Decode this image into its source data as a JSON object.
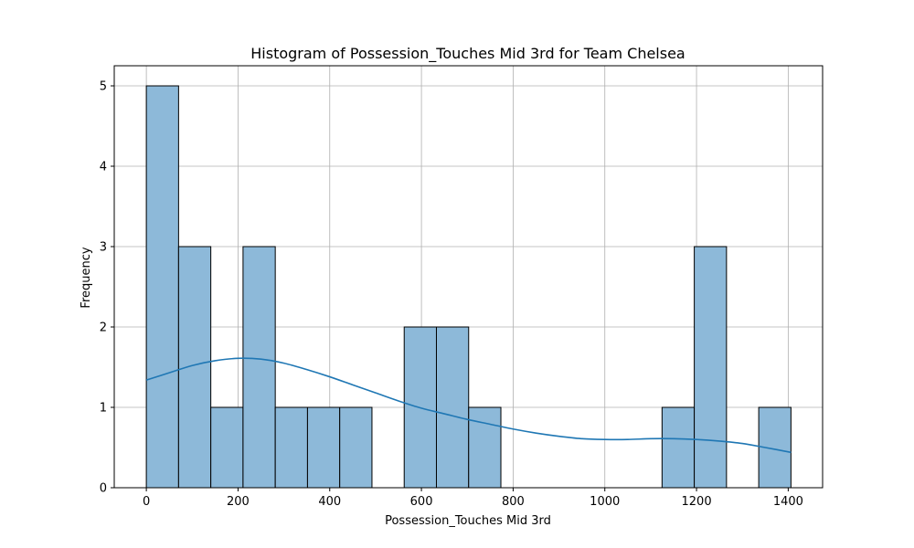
{
  "chart_data": {
    "type": "bar",
    "title": "Histogram of Possession_Touches Mid 3rd for Team Chelsea",
    "xlabel": "Possession_Touches Mid 3rd",
    "ylabel": "Frequency",
    "xlim": [
      -70,
      1475
    ],
    "ylim": [
      0,
      5.25
    ],
    "xticks": [
      0,
      200,
      400,
      600,
      800,
      1000,
      1200,
      1400
    ],
    "yticks": [
      0,
      1,
      2,
      3,
      4,
      5
    ],
    "grid": true,
    "bins": [
      {
        "start": 0,
        "end": 70.3,
        "count": 5
      },
      {
        "start": 70.3,
        "end": 140.6,
        "count": 3
      },
      {
        "start": 140.6,
        "end": 210.9,
        "count": 1
      },
      {
        "start": 210.9,
        "end": 281.2,
        "count": 3
      },
      {
        "start": 281.2,
        "end": 351.5,
        "count": 1
      },
      {
        "start": 351.5,
        "end": 421.8,
        "count": 1
      },
      {
        "start": 421.8,
        "end": 492.1,
        "count": 1
      },
      {
        "start": 492.1,
        "end": 562.4,
        "count": 0
      },
      {
        "start": 562.4,
        "end": 632.7,
        "count": 2
      },
      {
        "start": 632.7,
        "end": 703.0,
        "count": 2
      },
      {
        "start": 703.0,
        "end": 773.3,
        "count": 1
      },
      {
        "start": 773.3,
        "end": 843.6,
        "count": 0
      },
      {
        "start": 843.6,
        "end": 913.9,
        "count": 0
      },
      {
        "start": 913.9,
        "end": 984.2,
        "count": 0
      },
      {
        "start": 984.2,
        "end": 1054.5,
        "count": 0
      },
      {
        "start": 1054.5,
        "end": 1124.8,
        "count": 0
      },
      {
        "start": 1124.8,
        "end": 1195.1,
        "count": 1
      },
      {
        "start": 1195.1,
        "end": 1265.4,
        "count": 3
      },
      {
        "start": 1265.4,
        "end": 1335.7,
        "count": 0
      },
      {
        "start": 1335.7,
        "end": 1406.0,
        "count": 1
      }
    ],
    "kde": {
      "x": [
        0,
        50,
        100,
        150,
        200,
        250,
        300,
        350,
        400,
        450,
        500,
        550,
        600,
        650,
        700,
        750,
        800,
        850,
        900,
        950,
        1000,
        1050,
        1100,
        1150,
        1200,
        1250,
        1300,
        1350,
        1406
      ],
      "y": [
        1.34,
        1.43,
        1.52,
        1.58,
        1.61,
        1.6,
        1.55,
        1.47,
        1.38,
        1.28,
        1.18,
        1.08,
        0.99,
        0.92,
        0.85,
        0.79,
        0.73,
        0.68,
        0.64,
        0.61,
        0.6,
        0.6,
        0.61,
        0.61,
        0.6,
        0.58,
        0.55,
        0.5,
        0.44
      ]
    },
    "colors": {
      "bar_fill": "#8db9d9",
      "bar_edge": "#000000",
      "kde_line": "#1f77b4",
      "grid": "#b0b0b0"
    }
  }
}
